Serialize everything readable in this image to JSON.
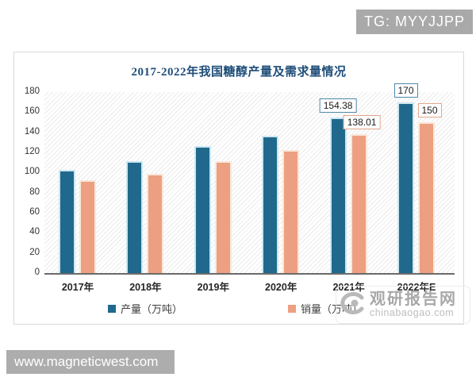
{
  "overlays": {
    "tg_badge": "TG: MYYJJPP",
    "site_badge": "www.magneticwest.com"
  },
  "watermark": {
    "name": "观研报告网",
    "domain": "chinabaogao.com"
  },
  "chart_data": {
    "type": "bar",
    "title": "2017-2022年我国糖醇产量及需求量情况",
    "categories": [
      "2017年",
      "2018年",
      "2019年",
      "2020年",
      "2021年",
      "2022年E"
    ],
    "series": [
      {
        "name": "产量（万吨）",
        "color": "#20698C",
        "border_color": "#CDE7F2",
        "label_border": "#4E88A8",
        "values": [
          103,
          111,
          126,
          136.5,
          154.38,
          170
        ],
        "point_labels": [
          "",
          "",
          "",
          "",
          "154.38",
          "170"
        ]
      },
      {
        "name": "销量（万吨）",
        "color": "#EDA081",
        "border_color": "#F9E8DB",
        "label_border": "#E2A58C",
        "values": [
          92,
          98.5,
          111.5,
          122,
          138.01,
          150
        ],
        "point_labels": [
          "",
          "",
          "",
          "",
          "138.01",
          "150"
        ]
      }
    ],
    "ylim": [
      0,
      180
    ],
    "yticks": [
      0,
      20,
      40,
      60,
      80,
      100,
      120,
      140,
      160,
      180
    ],
    "grid": false,
    "plot_background": "diagonal-hatch",
    "legend_position": "bottom-inside",
    "title_color": "#1F4E79"
  }
}
